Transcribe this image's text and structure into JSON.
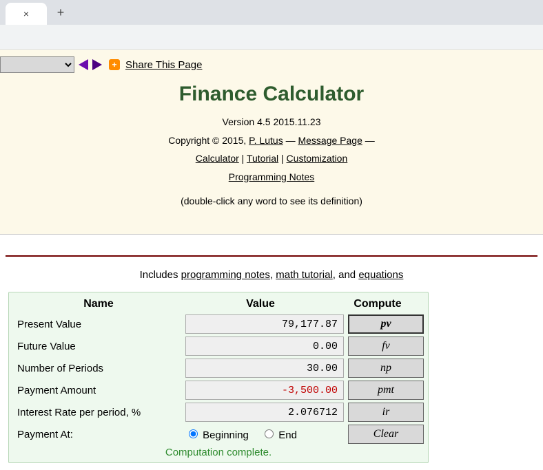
{
  "share_label": " Share This Page",
  "title": "Finance Calculator",
  "version": "Version 4.5 2015.11.23",
  "copyright_prefix": "Copyright © 2015, ",
  "author": "P. Lutus",
  "message_page": "Message Page",
  "nav_links": {
    "calculator": "Calculator",
    "tutorial": "Tutorial",
    "customization": "Customization",
    "programming_notes": "Programming Notes"
  },
  "hint": "(double-click any word to see its definition)",
  "includes": {
    "prefix": "Includes ",
    "prog_notes": "programming notes",
    "math_tutorial": "math tutorial",
    "equations": "equations"
  },
  "columns": {
    "name": "Name",
    "value": "Value",
    "compute": "Compute"
  },
  "rows": [
    {
      "label": "Present Value",
      "value": "79,177.87",
      "btn": "pv",
      "active": true,
      "neg": false
    },
    {
      "label": "Future Value",
      "value": "0.00",
      "btn": "fv",
      "active": false,
      "neg": false
    },
    {
      "label": "Number of Periods",
      "value": "30.00",
      "btn": "np",
      "active": false,
      "neg": false
    },
    {
      "label": "Payment Amount",
      "value": "-3,500.00",
      "btn": "pmt",
      "active": false,
      "neg": true
    },
    {
      "label": "Interest Rate per period, %",
      "value": "2.076712",
      "btn": "ir",
      "active": false,
      "neg": false
    }
  ],
  "payment_at": {
    "label": "Payment At:",
    "beginning": "Beginning",
    "end": "End",
    "selected": "beginning",
    "clear": "Clear"
  },
  "status": "Computation complete."
}
